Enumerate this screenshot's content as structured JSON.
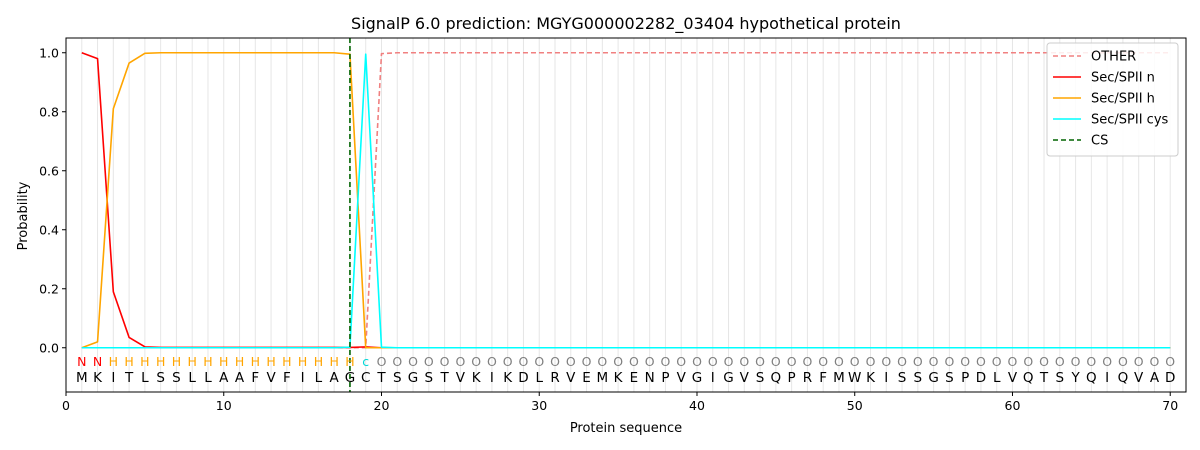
{
  "chart_data": {
    "type": "line",
    "title": "SignalP 6.0 prediction: MGYG000002282_03404 hypothetical protein",
    "xlabel": "Protein sequence",
    "ylabel": "Probability",
    "xlim": [
      0,
      71
    ],
    "ylim": [
      -0.15,
      1.05
    ],
    "xticks": [
      0,
      10,
      20,
      30,
      40,
      50,
      60,
      70
    ],
    "yticks": [
      0.0,
      0.2,
      0.4,
      0.6,
      0.8,
      1.0
    ],
    "ytick_labels": [
      "0.0",
      "0.2",
      "0.4",
      "0.6",
      "0.8",
      "1.0"
    ],
    "legend_position": "top-right",
    "sequence": [
      "M",
      "K",
      "I",
      "T",
      "L",
      "S",
      "S",
      "L",
      "L",
      "A",
      "A",
      "F",
      "V",
      "F",
      "I",
      "L",
      "A",
      "G",
      "C",
      "T",
      "S",
      "G",
      "S",
      "T",
      "V",
      "K",
      "I",
      "K",
      "D",
      "L",
      "R",
      "V",
      "E",
      "M",
      "K",
      "E",
      "N",
      "P",
      "V",
      "G",
      "I",
      "G",
      "V",
      "S",
      "Q",
      "P",
      "R",
      "F",
      "M",
      "W",
      "K",
      "I",
      "S",
      "S",
      "G",
      "S",
      "P",
      "D",
      "L",
      "V",
      "Q",
      "T",
      "S",
      "Y",
      "Q",
      "I",
      "Q",
      "V",
      "A",
      "D"
    ],
    "prediction": [
      "N",
      "N",
      "H",
      "H",
      "H",
      "H",
      "H",
      "H",
      "H",
      "H",
      "H",
      "H",
      "H",
      "H",
      "H",
      "H",
      "H",
      "H",
      "c",
      "O",
      "O",
      "O",
      "O",
      "O",
      "O",
      "O",
      "O",
      "O",
      "O",
      "O",
      "O",
      "O",
      "O",
      "O",
      "O",
      "O",
      "O",
      "O",
      "O",
      "O",
      "O",
      "O",
      "O",
      "O",
      "O",
      "O",
      "O",
      "O",
      "O",
      "O",
      "O",
      "O",
      "O",
      "O",
      "O",
      "O",
      "O",
      "O",
      "O",
      "O",
      "O",
      "O",
      "O",
      "O",
      "O",
      "O",
      "O",
      "O",
      "O",
      "O"
    ],
    "prediction_colors": {
      "N": "#ff0000",
      "H": "#ffa500",
      "c": "#00d7d7",
      "O": "#808080"
    },
    "cleavage_site": 18,
    "series": [
      {
        "name": "OTHER",
        "color": "#f08080",
        "dash": "dashed",
        "x": [
          1,
          2,
          3,
          4,
          5,
          6,
          7,
          8,
          9,
          10,
          11,
          12,
          13,
          14,
          15,
          16,
          17,
          18,
          19,
          20,
          21,
          22,
          23,
          24,
          25,
          26,
          27,
          28,
          29,
          30,
          31,
          32,
          33,
          34,
          35,
          36,
          37,
          38,
          39,
          40,
          41,
          42,
          43,
          44,
          45,
          46,
          47,
          48,
          49,
          50,
          51,
          52,
          53,
          54,
          55,
          56,
          57,
          58,
          59,
          60,
          61,
          62,
          63,
          64,
          65,
          66,
          67,
          68,
          69,
          70
        ],
        "values": [
          0,
          0,
          0,
          0,
          0,
          0,
          0,
          0,
          0,
          0,
          0,
          0,
          0,
          0,
          0,
          0,
          0,
          0,
          0,
          0.997,
          1,
          1,
          1,
          1,
          1,
          1,
          1,
          1,
          1,
          1,
          1,
          1,
          1,
          1,
          1,
          1,
          1,
          1,
          1,
          1,
          1,
          1,
          1,
          1,
          1,
          1,
          1,
          1,
          1,
          1,
          1,
          1,
          1,
          1,
          1,
          1,
          1,
          1,
          1,
          1,
          1,
          1,
          1,
          1,
          1,
          1,
          1,
          1,
          1,
          1
        ]
      },
      {
        "name": "Sec/SPII n",
        "color": "#ff0000",
        "dash": "solid",
        "x": [
          1,
          2,
          3,
          4,
          5,
          6,
          7,
          8,
          9,
          10,
          11,
          12,
          13,
          14,
          15,
          16,
          17,
          18,
          19,
          20,
          21,
          22,
          23,
          24,
          25,
          26,
          27,
          28,
          29,
          30,
          31,
          32,
          33,
          34,
          35,
          36,
          37,
          38,
          39,
          40,
          41,
          42,
          43,
          44,
          45,
          46,
          47,
          48,
          49,
          50,
          51,
          52,
          53,
          54,
          55,
          56,
          57,
          58,
          59,
          60,
          61,
          62,
          63,
          64,
          65,
          66,
          67,
          68,
          69,
          70
        ],
        "values": [
          1.0,
          0.98,
          0.19,
          0.035,
          0.003,
          0.001,
          0.001,
          0.001,
          0.001,
          0.001,
          0.001,
          0.001,
          0.001,
          0.001,
          0.001,
          0.001,
          0.001,
          0.001,
          0.003,
          0,
          0,
          0,
          0,
          0,
          0,
          0,
          0,
          0,
          0,
          0,
          0,
          0,
          0,
          0,
          0,
          0,
          0,
          0,
          0,
          0,
          0,
          0,
          0,
          0,
          0,
          0,
          0,
          0,
          0,
          0,
          0,
          0,
          0,
          0,
          0,
          0,
          0,
          0,
          0,
          0,
          0,
          0,
          0,
          0,
          0,
          0,
          0,
          0,
          0,
          0
        ]
      },
      {
        "name": "Sec/SPII h",
        "color": "#ffa500",
        "dash": "solid",
        "x": [
          1,
          2,
          3,
          4,
          5,
          6,
          7,
          8,
          9,
          10,
          11,
          12,
          13,
          14,
          15,
          16,
          17,
          18,
          19,
          20,
          21,
          22,
          23,
          24,
          25,
          26,
          27,
          28,
          29,
          30,
          31,
          32,
          33,
          34,
          35,
          36,
          37,
          38,
          39,
          40,
          41,
          42,
          43,
          44,
          45,
          46,
          47,
          48,
          49,
          50,
          51,
          52,
          53,
          54,
          55,
          56,
          57,
          58,
          59,
          60,
          61,
          62,
          63,
          64,
          65,
          66,
          67,
          68,
          69,
          70
        ],
        "values": [
          0.0,
          0.02,
          0.81,
          0.965,
          0.998,
          1.0,
          1.0,
          1.0,
          1.0,
          1.0,
          1.0,
          1.0,
          1.0,
          1.0,
          1.0,
          1.0,
          1.0,
          0.995,
          0.0,
          0,
          0,
          0,
          0,
          0,
          0,
          0,
          0,
          0,
          0,
          0,
          0,
          0,
          0,
          0,
          0,
          0,
          0,
          0,
          0,
          0,
          0,
          0,
          0,
          0,
          0,
          0,
          0,
          0,
          0,
          0,
          0,
          0,
          0,
          0,
          0,
          0,
          0,
          0,
          0,
          0,
          0,
          0,
          0,
          0,
          0,
          0,
          0,
          0,
          0,
          0
        ]
      },
      {
        "name": "Sec/SPII cys",
        "color": "#00ffff",
        "dash": "solid",
        "x": [
          1,
          2,
          3,
          4,
          5,
          6,
          7,
          8,
          9,
          10,
          11,
          12,
          13,
          14,
          15,
          16,
          17,
          18,
          19,
          20,
          21,
          22,
          23,
          24,
          25,
          26,
          27,
          28,
          29,
          30,
          31,
          32,
          33,
          34,
          35,
          36,
          37,
          38,
          39,
          40,
          41,
          42,
          43,
          44,
          45,
          46,
          47,
          48,
          49,
          50,
          51,
          52,
          53,
          54,
          55,
          56,
          57,
          58,
          59,
          60,
          61,
          62,
          63,
          64,
          65,
          66,
          67,
          68,
          69,
          70
        ],
        "values": [
          0,
          0,
          0,
          0,
          0,
          0,
          0,
          0,
          0,
          0,
          0,
          0,
          0,
          0,
          0,
          0,
          0,
          0.002,
          0.995,
          0.002,
          0,
          0,
          0,
          0,
          0,
          0,
          0,
          0,
          0,
          0,
          0,
          0,
          0,
          0,
          0,
          0,
          0,
          0,
          0,
          0,
          0,
          0,
          0,
          0,
          0,
          0,
          0,
          0,
          0,
          0,
          0,
          0,
          0,
          0,
          0,
          0,
          0,
          0,
          0,
          0,
          0,
          0,
          0,
          0,
          0,
          0,
          0,
          0,
          0,
          0
        ]
      }
    ],
    "legend": [
      {
        "label": "OTHER",
        "color": "#f08080",
        "dash": "dashed"
      },
      {
        "label": "Sec/SPII n",
        "color": "#ff0000",
        "dash": "solid"
      },
      {
        "label": "Sec/SPII h",
        "color": "#ffa500",
        "dash": "solid"
      },
      {
        "label": "Sec/SPII cys",
        "color": "#00ffff",
        "dash": "solid"
      },
      {
        "label": "CS",
        "color": "#006400",
        "dash": "dashed"
      }
    ]
  }
}
